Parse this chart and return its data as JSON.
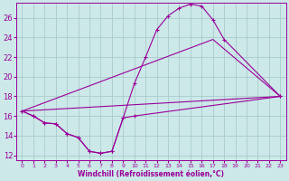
{
  "title": "",
  "xlabel": "Windchill (Refroidissement éolien,°C)",
  "ylabel": "",
  "background_color": "#cce8e8",
  "line_color": "#990099",
  "grid_color": "#aacccc",
  "xlim": [
    -0.5,
    23.5
  ],
  "ylim": [
    11.5,
    27.5
  ],
  "xticks": [
    0,
    1,
    2,
    3,
    4,
    5,
    6,
    7,
    8,
    9,
    10,
    11,
    12,
    13,
    14,
    15,
    16,
    17,
    18,
    19,
    20,
    21,
    22,
    23
  ],
  "yticks": [
    12,
    14,
    16,
    18,
    20,
    22,
    24,
    26
  ],
  "series": [
    {
      "x": [
        0,
        1,
        2,
        3,
        4,
        5,
        6,
        7,
        8,
        9,
        10,
        23
      ],
      "y": [
        16.5,
        16.0,
        15.3,
        15.2,
        14.2,
        13.8,
        12.4,
        12.2,
        12.4,
        15.8,
        16.0,
        18.0
      ]
    },
    {
      "x": [
        0,
        1,
        2,
        3,
        4,
        5,
        6,
        7,
        8,
        9,
        10,
        11,
        12,
        13,
        14,
        15,
        16,
        17,
        18,
        23
      ],
      "y": [
        16.5,
        16.0,
        15.3,
        15.2,
        14.2,
        13.8,
        12.4,
        12.2,
        12.4,
        15.8,
        19.3,
        22.0,
        24.8,
        26.2,
        27.0,
        27.4,
        27.2,
        25.8,
        23.8,
        18.0
      ]
    },
    {
      "comment": "straight diagonal: from (0,16.5) to (17,23.8) to (23,18)",
      "x": [
        0,
        17,
        23
      ],
      "y": [
        16.5,
        23.8,
        18.0
      ]
    },
    {
      "x": [
        0,
        23
      ],
      "y": [
        16.5,
        18.0
      ]
    }
  ]
}
